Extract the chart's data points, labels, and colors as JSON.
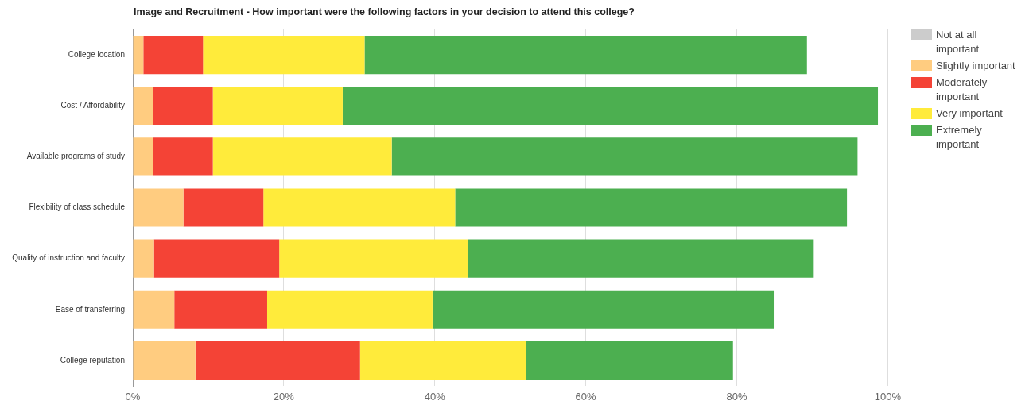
{
  "chart_data": {
    "type": "bar",
    "orientation": "horizontal",
    "stacked": true,
    "title": "Image and Recruitment - How important were the following factors in your decision to attend this college?",
    "categories": [
      "College location",
      "Cost / Affordability",
      "Available programs of study",
      "Flexibility of class schedule",
      "Quality of instruction and faculty",
      "Ease of transferring",
      "College reputation"
    ],
    "series": [
      {
        "name": "Not at all important",
        "color": "#cccccc",
        "values": [
          0,
          0,
          0,
          0,
          0,
          0,
          0
        ]
      },
      {
        "name": "Slightly important",
        "color": "#ffcc80",
        "values": [
          1.4,
          2.7,
          2.7,
          6.7,
          2.8,
          5.5,
          8.3
        ]
      },
      {
        "name": "Moderately important",
        "color": "#f44336",
        "values": [
          7.9,
          7.9,
          7.9,
          10.6,
          16.6,
          12.3,
          21.8
        ]
      },
      {
        "name": "Very important",
        "color": "#ffeb3b",
        "values": [
          21.4,
          17.2,
          23.7,
          25.4,
          25.0,
          21.9,
          22.0
        ]
      },
      {
        "name": "Extremely important",
        "color": "#4caf50",
        "values": [
          58.6,
          70.9,
          61.7,
          51.9,
          45.8,
          45.2,
          27.4
        ]
      }
    ],
    "xlim": [
      0,
      100
    ],
    "xticks": [
      {
        "value": 0,
        "label": "0%"
      },
      {
        "value": 20,
        "label": "20%"
      },
      {
        "value": 40,
        "label": "40%"
      },
      {
        "value": 60,
        "label": "60%"
      },
      {
        "value": 80,
        "label": "80%"
      },
      {
        "value": 100,
        "label": "100%"
      }
    ],
    "grid": "x",
    "legend": "right"
  }
}
